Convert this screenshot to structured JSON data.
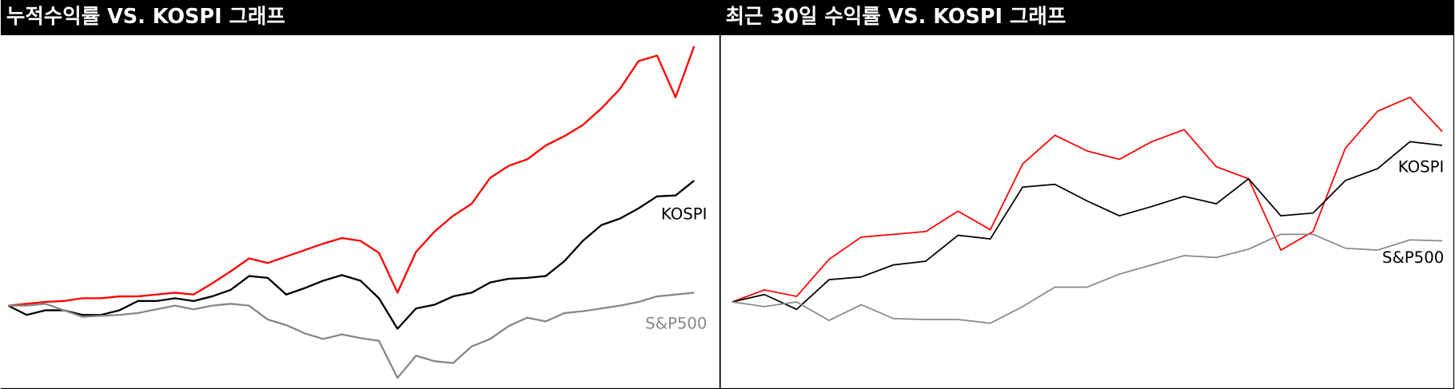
{
  "chart_data": [
    {
      "type": "line",
      "title": "누적수익률 VS. KOSPI 그래프",
      "categories": [
        null,
        null,
        null,
        null,
        null,
        null,
        null,
        null,
        null,
        null,
        null,
        null,
        null,
        null,
        null,
        null,
        null,
        null,
        null,
        null,
        null,
        null,
        null,
        null,
        null,
        null,
        null,
        null,
        null,
        null,
        null,
        null,
        null,
        null,
        null,
        null,
        null,
        null
      ],
      "ylim": [
        -90,
        292
      ],
      "series": [
        {
          "color": "#ff0000",
          "values": [
            0,
            2,
            4,
            5,
            8,
            8,
            10,
            10,
            12,
            14,
            12,
            24,
            37,
            51,
            46,
            53,
            60,
            67,
            73,
            70,
            57,
            14,
            58,
            80,
            97,
            110,
            138,
            151,
            158,
            173,
            183,
            195,
            213,
            234,
            264,
            270,
            225,
            280
          ]
        },
        {
          "name": "KOSPI",
          "color": "#000000",
          "values": [
            0,
            -10,
            -5,
            -5,
            -10,
            -10,
            -5,
            5,
            5,
            8,
            5,
            10,
            17,
            32,
            30,
            12,
            19,
            27,
            33,
            27,
            8,
            -25,
            -3,
            1,
            10,
            14,
            25,
            29,
            30,
            32,
            48,
            70,
            87,
            94,
            105,
            118,
            119,
            135
          ]
        },
        {
          "name": "S&P500",
          "color": "#888888",
          "values": [
            0,
            0,
            2,
            -5,
            -12,
            -11,
            -10,
            -8,
            -4,
            0,
            -4,
            0,
            2,
            0,
            -15,
            -21,
            -30,
            -36,
            -31,
            -35,
            -38,
            -78,
            -54,
            -60,
            -62,
            -44,
            -36,
            -22,
            -13,
            -17,
            -8,
            -6,
            -3,
            0,
            4,
            10,
            12,
            14
          ]
        }
      ]
    },
    {
      "type": "line",
      "title": "최근 30일 수익률 VS. KOSPI 그래프",
      "categories": [
        null,
        null,
        null,
        null,
        null,
        null,
        null,
        null,
        null,
        null,
        null,
        null,
        null,
        null,
        null,
        null,
        null,
        null,
        null,
        null,
        null,
        null,
        null
      ],
      "ylim": [
        -94,
        288
      ],
      "series": [
        {
          "color": "#ff0000",
          "values": [
            0,
            13,
            6,
            46,
            70,
            73,
            76,
            98,
            78,
            149,
            180,
            163,
            154,
            173,
            186,
            146,
            133,
            56,
            76,
            166,
            206,
            221,
            184
          ]
        },
        {
          "name": "KOSPI",
          "color": "#000000",
          "values": [
            0,
            8,
            -8,
            24,
            27,
            40,
            44,
            72,
            68,
            124,
            127,
            109,
            93,
            103,
            114,
            106,
            133,
            93,
            96,
            131,
            144,
            173,
            169
          ]
        },
        {
          "name": "S&P500",
          "color": "#888888",
          "values": [
            0,
            -5,
            0,
            -20,
            -3,
            -18,
            -19,
            -19,
            -23,
            -5,
            16,
            16,
            30,
            40,
            50,
            48,
            57,
            73,
            73,
            58,
            56,
            67,
            66
          ]
        }
      ]
    }
  ]
}
